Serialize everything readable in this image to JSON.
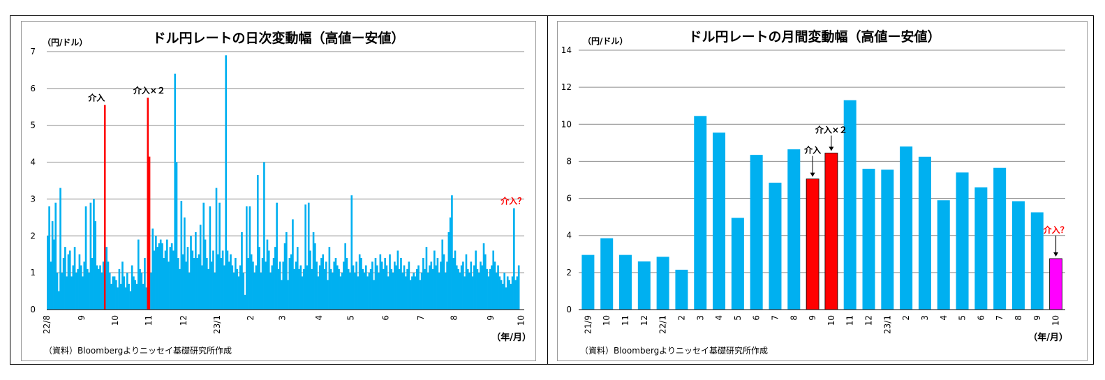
{
  "chart_data": [
    {
      "type": "bar",
      "title": "ドル円レートの日次変動幅（高値ー安値）",
      "ylabel": "（円/ドル）",
      "xlabel": "（年/月）",
      "source": "（資料）Bloombergよりニッセイ基礎研究所作成",
      "ylim": [
        0,
        7
      ],
      "yticks": [
        "0",
        "1",
        "2",
        "3",
        "4",
        "5",
        "6",
        "7"
      ],
      "grid": true,
      "n_days": 300,
      "x_ticks": [
        {
          "day": 0,
          "label": "22/8"
        },
        {
          "day": 22,
          "label": "9"
        },
        {
          "day": 43,
          "label": "10"
        },
        {
          "day": 64,
          "label": "11"
        },
        {
          "day": 86,
          "label": "12"
        },
        {
          "day": 107,
          "label": "23/1"
        },
        {
          "day": 128,
          "label": "2"
        },
        {
          "day": 148,
          "label": "3"
        },
        {
          "day": 171,
          "label": "4"
        },
        {
          "day": 191,
          "label": "5"
        },
        {
          "day": 213,
          "label": "6"
        },
        {
          "day": 235,
          "label": "7"
        },
        {
          "day": 256,
          "label": "8"
        },
        {
          "day": 279,
          "label": "9"
        },
        {
          "day": 298,
          "label": "10"
        }
      ],
      "series_values": [
        2.0,
        2.8,
        1.3,
        2.4,
        1.9,
        2.9,
        1.0,
        0.5,
        3.3,
        1.0,
        1.4,
        1.7,
        0.9,
        1.5,
        1.6,
        0.9,
        1.2,
        1.7,
        1.0,
        1.1,
        1.5,
        1.2,
        0.9,
        1.3,
        2.8,
        1.1,
        1.0,
        2.9,
        1.4,
        3.0,
        2.4,
        1.2,
        1.1,
        1.2,
        1.0,
        1.3,
        5.55,
        1.7,
        1.3,
        1.0,
        0.7,
        0.9,
        0.9,
        0.8,
        0.6,
        1.1,
        0.7,
        1.3,
        0.9,
        0.6,
        1.0,
        0.7,
        0.5,
        1.2,
        0.9,
        0.8,
        0.7,
        1.9,
        1.1,
        1.0,
        0.7,
        1.4,
        0.6,
        5.75,
        4.15,
        1.0,
        2.2,
        1.6,
        2.0,
        1.7,
        1.8,
        1.9,
        1.8,
        1.4,
        1.6,
        1.9,
        1.3,
        1.7,
        1.8,
        1.6,
        6.4,
        4.0,
        1.4,
        1.1,
        2.95,
        1.5,
        2.5,
        1.3,
        1.7,
        1.0,
        2.0,
        1.6,
        1.4,
        2.1,
        1.4,
        1.5,
        2.3,
        1.2,
        2.9,
        1.9,
        1.4,
        1.1,
        2.8,
        1.3,
        1.6,
        1.0,
        3.3,
        1.5,
        2.9,
        1.4,
        1.6,
        1.2,
        6.9,
        1.6,
        1.3,
        1.5,
        1.2,
        1.0,
        1.4,
        1.1,
        0.9,
        1.2,
        2.1,
        1.0,
        0.4,
        2.8,
        1.4,
        2.8,
        1.5,
        1.3,
        1.0,
        1.2,
        3.65,
        1.7,
        1.0,
        1.4,
        4.0,
        1.3,
        1.9,
        1.6,
        1.0,
        1.2,
        1.4,
        1.7,
        2.9,
        1.1,
        1.3,
        0.8,
        1.3,
        1.8,
        2.1,
        0.8,
        1.4,
        1.5,
        2.45,
        1.1,
        1.3,
        1.7,
        1.1,
        1.2,
        0.9,
        1.1,
        2.85,
        1.2,
        2.9,
        1.6,
        1.1,
        2.1,
        1.8,
        1.3,
        0.9,
        1.2,
        1.4,
        1.5,
        1.1,
        1.3,
        0.8,
        1.7,
        1.1,
        1.0,
        1.3,
        1.4,
        1.2,
        1.1,
        0.9,
        1.0,
        1.3,
        1.8,
        1.4,
        1.1,
        1.0,
        3.1,
        1.2,
        1.0,
        1.3,
        0.9,
        1.5,
        1.4,
        1.1,
        1.0,
        1.2,
        0.9,
        1.0,
        1.1,
        1.3,
        0.8,
        1.4,
        1.2,
        1.0,
        1.5,
        1.3,
        1.1,
        1.4,
        1.2,
        0.9,
        1.5,
        1.1,
        1.0,
        1.3,
        1.2,
        1.6,
        1.1,
        1.4,
        1.0,
        1.2,
        0.9,
        1.1,
        1.3,
        0.8,
        0.9,
        1.0,
        0.9,
        1.1,
        1.2,
        0.8,
        1.0,
        1.4,
        1.1,
        1.7,
        1.0,
        1.2,
        1.3,
        1.1,
        1.6,
        1.2,
        1.4,
        1.0,
        1.3,
        1.9,
        1.5,
        1.0,
        1.3,
        2.1,
        2.5,
        3.1,
        1.4,
        1.6,
        1.2,
        1.1,
        1.0,
        1.2,
        1.3,
        0.9,
        1.5,
        1.1,
        1.0,
        1.3,
        0.9,
        1.2,
        1.6,
        1.1,
        1.0,
        1.3,
        1.2,
        1.8,
        1.5,
        1.1,
        0.9,
        1.1,
        1.2,
        1.6,
        1.3,
        1.0,
        1.2,
        0.9,
        0.8,
        0.7,
        1.0,
        0.6,
        0.9,
        0.8,
        0.7,
        0.9,
        2.75,
        0.8,
        0.9,
        1.2
      ],
      "highlights": [
        {
          "day": 36,
          "color": "#ff0000"
        },
        {
          "day": 63,
          "color": "#ff0000"
        },
        {
          "day": 64,
          "color": "#ff0000"
        },
        {
          "day": 297,
          "color": "#ff00ff"
        }
      ],
      "annotations": [
        {
          "day": 36,
          "value": 5.55,
          "text": "介入",
          "color": "#000000"
        },
        {
          "day": 63,
          "value": 5.75,
          "text": "介入×２",
          "color": "#000000"
        },
        {
          "day": 297,
          "value": 2.75,
          "text": "介入？",
          "color": "#ff0000"
        }
      ],
      "colors": {
        "base": "#00b0f0",
        "intervention": "#ff0000",
        "suspected": "#ff00ff"
      }
    },
    {
      "type": "bar",
      "title": "ドル円レートの月間変動幅（高値ー安値）",
      "ylabel": "（円/ドル）",
      "xlabel": "（年/月）",
      "source": "（資料）Bloombergよりニッセイ基礎研究所作成",
      "ylim": [
        0,
        14
      ],
      "yticks": [
        "0",
        "2",
        "4",
        "6",
        "8",
        "10",
        "12",
        "14"
      ],
      "grid": true,
      "categories": [
        "21/9",
        "10",
        "11",
        "12",
        "22/1",
        "2",
        "3",
        "4",
        "5",
        "6",
        "7",
        "8",
        "9",
        "10",
        "11",
        "12",
        "23/1",
        "2",
        "3",
        "4",
        "5",
        "6",
        "7",
        "8",
        "9",
        "10"
      ],
      "values": [
        2.95,
        3.85,
        2.95,
        2.6,
        2.85,
        2.15,
        10.45,
        9.55,
        4.95,
        8.35,
        6.85,
        8.65,
        7.05,
        8.45,
        11.3,
        7.6,
        7.55,
        8.8,
        8.25,
        5.9,
        7.4,
        6.6,
        7.65,
        5.85,
        5.25,
        2.75
      ],
      "bar_colors": [
        "#00b0f0",
        "#00b0f0",
        "#00b0f0",
        "#00b0f0",
        "#00b0f0",
        "#00b0f0",
        "#00b0f0",
        "#00b0f0",
        "#00b0f0",
        "#00b0f0",
        "#00b0f0",
        "#00b0f0",
        "#ff0000",
        "#ff0000",
        "#00b0f0",
        "#00b0f0",
        "#00b0f0",
        "#00b0f0",
        "#00b0f0",
        "#00b0f0",
        "#00b0f0",
        "#00b0f0",
        "#00b0f0",
        "#00b0f0",
        "#00b0f0",
        "#ff00ff"
      ],
      "annotations": [
        {
          "index": 12,
          "text": "介入",
          "color": "#000000",
          "tier": 1
        },
        {
          "index": 13,
          "text": "介入×２",
          "color": "#000000",
          "tier": 2
        },
        {
          "index": 25,
          "text": "介入？",
          "color": "#ff0000",
          "tier": 1
        }
      ]
    }
  ]
}
